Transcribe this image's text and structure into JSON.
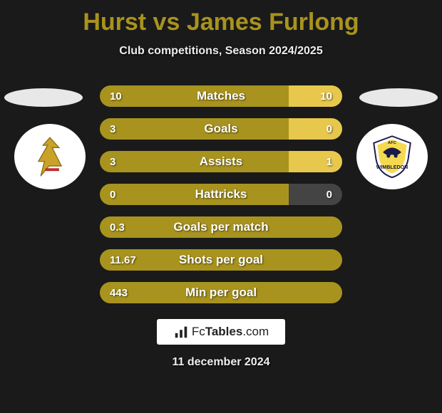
{
  "title": "Hurst vs James Furlong",
  "subtitle": "Club competitions, Season 2024/2025",
  "colors": {
    "title": "#a8931e",
    "bar_left": "#a8931e",
    "bar_right_neutral": "#444444",
    "bar_right_accent": "#e7c84c",
    "bar_dark": "#3a3a3a",
    "background": "#1a1a1a"
  },
  "stats": [
    {
      "label": "Matches",
      "left_val": "10",
      "right_val": "10",
      "left_pct": 78,
      "right_pct": 22,
      "right_color": "#e7c84c"
    },
    {
      "label": "Goals",
      "left_val": "3",
      "right_val": "0",
      "left_pct": 78,
      "right_pct": 22,
      "right_color": "#e7c84c"
    },
    {
      "label": "Assists",
      "left_val": "3",
      "right_val": "1",
      "left_pct": 78,
      "right_pct": 22,
      "right_color": "#e7c84c"
    },
    {
      "label": "Hattricks",
      "left_val": "0",
      "right_val": "0",
      "left_pct": 78,
      "right_pct": 22,
      "right_color": "#444444"
    },
    {
      "label": "Goals per match",
      "left_val": "0.3",
      "right_val": "",
      "left_pct": 100,
      "right_pct": 0,
      "right_color": "#444444"
    },
    {
      "label": "Shots per goal",
      "left_val": "11.67",
      "right_val": "",
      "left_pct": 100,
      "right_pct": 0,
      "right_color": "#444444"
    },
    {
      "label": "Min per goal",
      "left_val": "443",
      "right_val": "",
      "left_pct": 100,
      "right_pct": 0,
      "right_color": "#444444"
    }
  ],
  "footer": {
    "brand_prefix": "Fc",
    "brand_main": "Tables",
    "brand_suffix": ".com",
    "date": "11 december 2024"
  }
}
